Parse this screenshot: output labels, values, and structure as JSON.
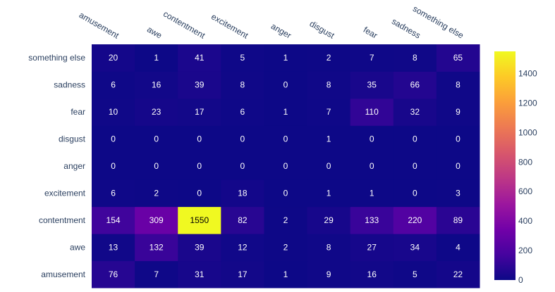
{
  "chart_data": {
    "type": "heatmap",
    "x_categories": [
      "amusement",
      "awe",
      "contentment",
      "excitement",
      "anger",
      "disgust",
      "fear",
      "sadness",
      "something else"
    ],
    "y_categories": [
      "amusement",
      "awe",
      "contentment",
      "excitement",
      "anger",
      "disgust",
      "fear",
      "sadness",
      "something else"
    ],
    "z": [
      [
        76,
        7,
        31,
        17,
        1,
        9,
        16,
        5,
        22
      ],
      [
        13,
        132,
        39,
        12,
        2,
        8,
        27,
        34,
        4
      ],
      [
        154,
        309,
        1550,
        82,
        2,
        29,
        133,
        220,
        89
      ],
      [
        6,
        2,
        0,
        18,
        0,
        1,
        1,
        0,
        3
      ],
      [
        0,
        0,
        0,
        0,
        0,
        0,
        0,
        0,
        0
      ],
      [
        0,
        0,
        0,
        0,
        0,
        1,
        0,
        0,
        0
      ],
      [
        10,
        23,
        17,
        6,
        1,
        7,
        110,
        32,
        9
      ],
      [
        6,
        16,
        39,
        8,
        0,
        8,
        35,
        66,
        8
      ],
      [
        20,
        1,
        41,
        5,
        1,
        2,
        7,
        8,
        65
      ]
    ],
    "zmin": 0,
    "zmax": 1550,
    "colorscale": "plasma",
    "colorbar_ticks": [
      0,
      200,
      400,
      600,
      800,
      1000,
      1200,
      1400
    ],
    "x_axis_position": "top",
    "title": "",
    "xlabel": "",
    "ylabel": ""
  }
}
